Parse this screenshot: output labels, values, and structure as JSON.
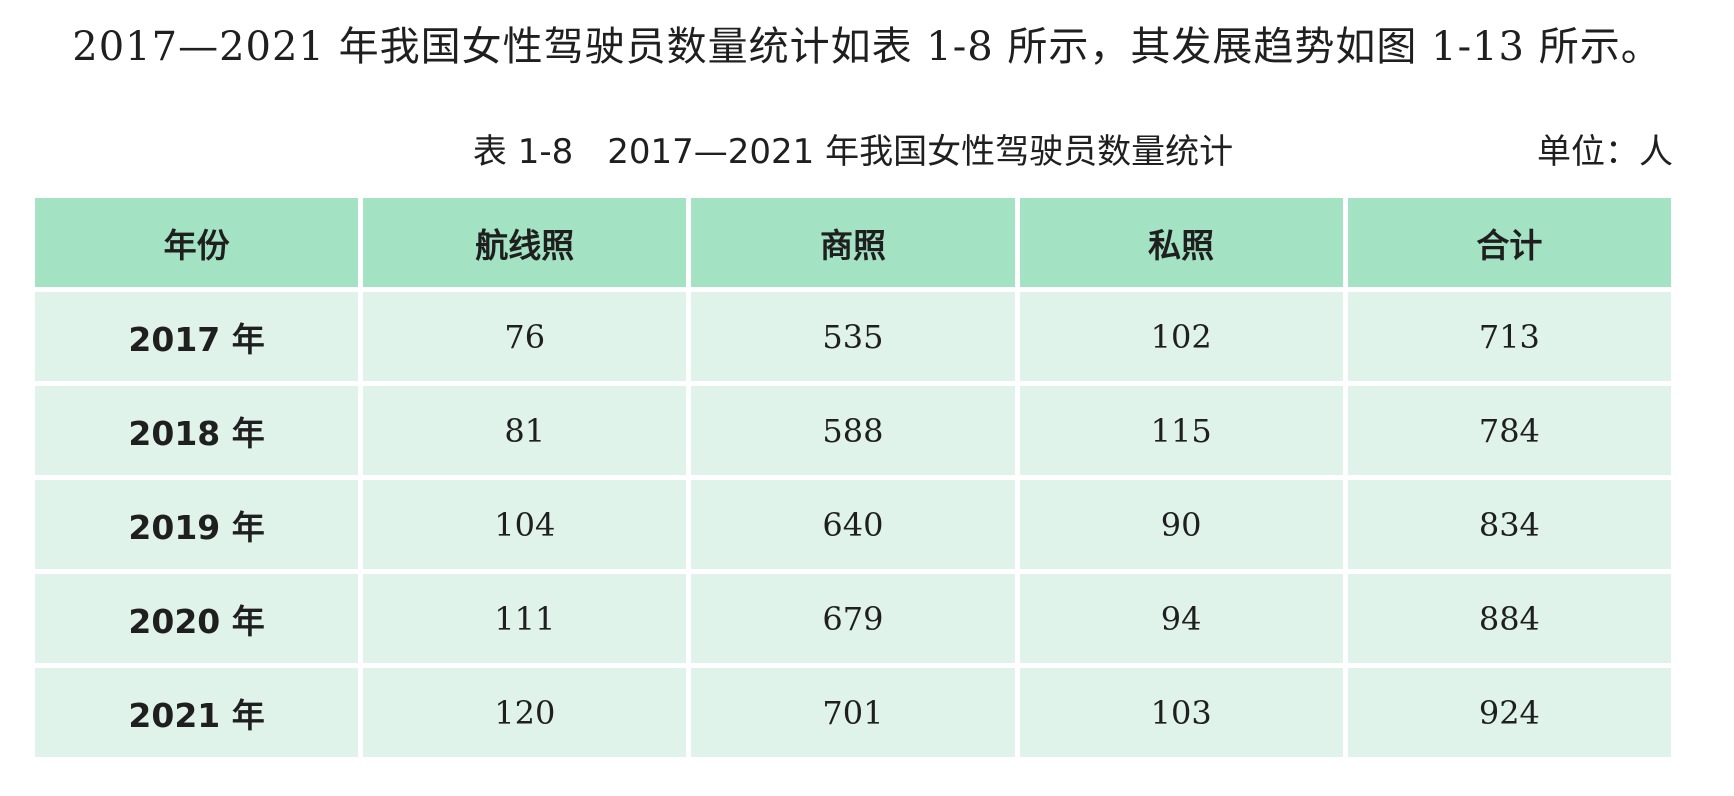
{
  "intro_text": "2017—2021 年我国女性驾驶员数量统计如表 1-8 所示，其发展趋势如图 1-13 所示。",
  "table": {
    "caption": "表 1-8　2017—2021 年我国女性驾驶员数量统计",
    "unit": "单位：人",
    "headers": [
      "年份",
      "航线照",
      "商照",
      "私照",
      "合计"
    ],
    "rows": [
      [
        "2017 年",
        "76",
        "535",
        "102",
        "713"
      ],
      [
        "2018 年",
        "81",
        "588",
        "115",
        "784"
      ],
      [
        "2019 年",
        "104",
        "640",
        "90",
        "834"
      ],
      [
        "2020 年",
        "111",
        "679",
        "94",
        "884"
      ],
      [
        "2021 年",
        "120",
        "701",
        "103",
        "924"
      ]
    ]
  },
  "colors": {
    "header_bg": "#a3e2c3",
    "cell_bg": "#e0f3ea"
  }
}
